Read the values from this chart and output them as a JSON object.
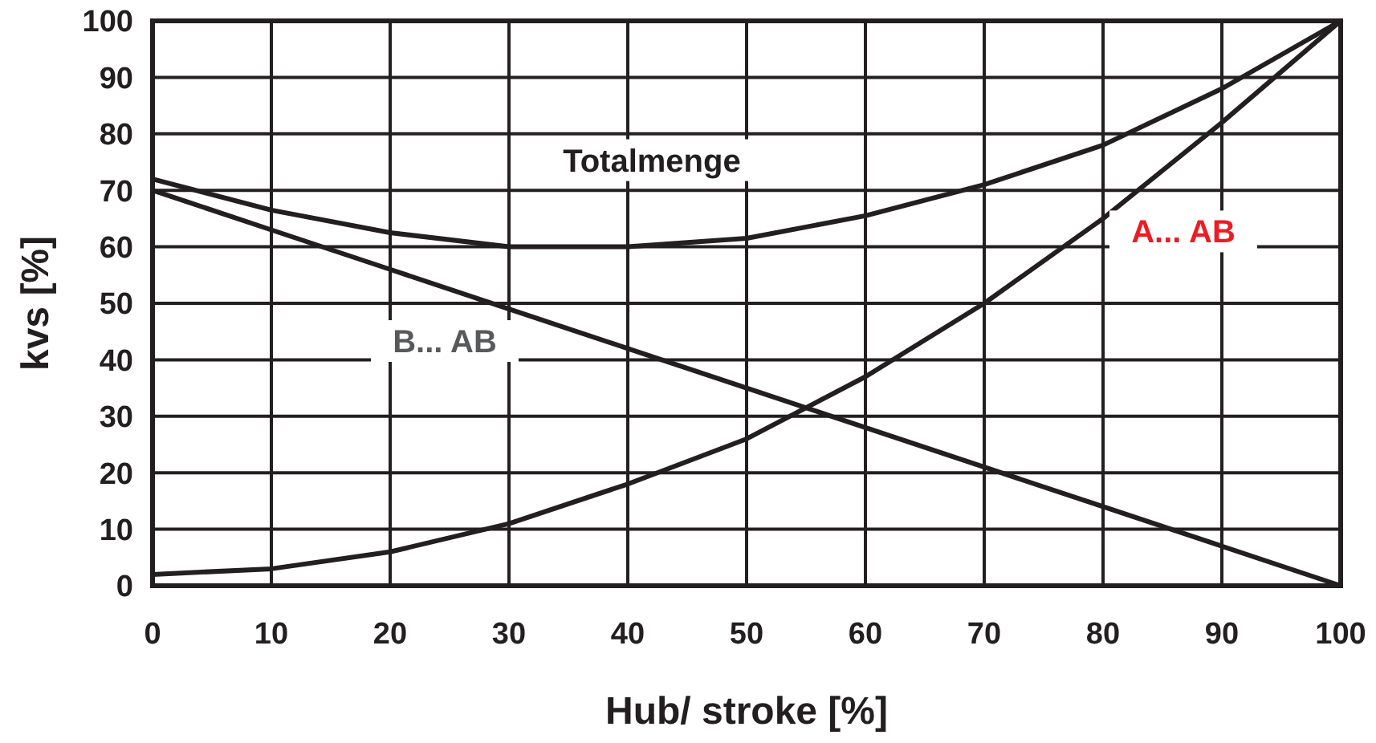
{
  "chart_data": {
    "type": "line",
    "xlabel": "Hub/ stroke [%]",
    "ylabel": "kvs [%]",
    "x": [
      0,
      10,
      20,
      30,
      40,
      50,
      60,
      70,
      80,
      90,
      100
    ],
    "xlim": [
      0,
      100
    ],
    "ylim": [
      0,
      100
    ],
    "xticks": [
      0,
      10,
      20,
      30,
      40,
      50,
      60,
      70,
      80,
      90,
      100
    ],
    "yticks": [
      0,
      10,
      20,
      30,
      40,
      50,
      60,
      70,
      80,
      90,
      100
    ],
    "grid": true,
    "marker": "none",
    "line_style": "solid",
    "series": [
      {
        "name": "Totalmenge",
        "color": "#231f20",
        "values": [
          72,
          66.5,
          62.5,
          60,
          60,
          61.5,
          65.5,
          71,
          78,
          88,
          100
        ]
      },
      {
        "name": "B... AB",
        "color": "#231f20",
        "values": [
          70,
          63,
          56,
          49,
          42,
          35,
          28,
          21,
          14,
          7,
          0
        ]
      },
      {
        "name": "A... AB",
        "color": "#231f20",
        "values": [
          2,
          3,
          6,
          11,
          18,
          26,
          37,
          50,
          65,
          82,
          100
        ]
      }
    ]
  }
}
